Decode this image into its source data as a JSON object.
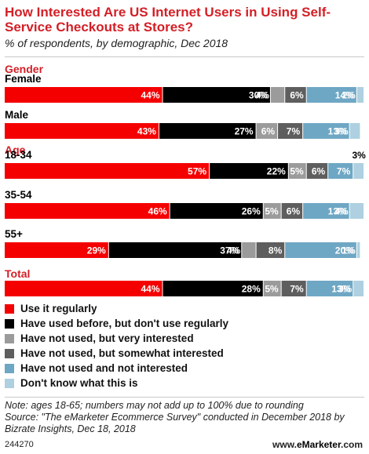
{
  "title": "How Interested Are US Internet Users in Using Self-Service Checkouts at Stores?",
  "subtitle": "% of respondents, by demographic, Dec 2018",
  "colors": {
    "accent": "#d31f26",
    "use_regularly": "#f50000",
    "used_before": "#000000",
    "very_interested": "#9b9b9b",
    "somewhat_interested": "#5e5e5e",
    "not_interested": "#6ea7c4",
    "dont_know": "#aed0e0"
  },
  "chart_data": {
    "type": "bar",
    "orientation": "horizontal",
    "stacked": true,
    "xlim": [
      0,
      100
    ],
    "grid": false,
    "legend_position": "bottom",
    "series_names": [
      "Use it regularly",
      "Have used before, but don't use regularly",
      "Have not used, but very interested",
      "Have not used, but somewhat interested",
      "Have not used and not interested",
      "Don't know what this is"
    ],
    "groups": [
      {
        "heading": "Gender",
        "bars": [
          {
            "label": "Female",
            "values": [
              44,
              30,
              4,
              6,
              14,
              2
            ],
            "data_labels": [
              "44%",
              "30%",
              "4%",
              "6%",
              "14%",
              "2%"
            ]
          },
          {
            "label": "Male",
            "values": [
              43,
              27,
              6,
              7,
              13,
              3
            ],
            "data_labels": [
              "43%",
              "27%",
              "6%",
              "7%",
              "13%",
              "3%"
            ]
          }
        ]
      },
      {
        "heading": "Age",
        "bars": [
          {
            "label": "18-34",
            "values": [
              57,
              22,
              5,
              6,
              7,
              3
            ],
            "data_labels": [
              "57%",
              "22%",
              "5%",
              "6%",
              "7%",
              "3%"
            ]
          },
          {
            "label": "35-54",
            "values": [
              46,
              26,
              5,
              6,
              13,
              4
            ],
            "data_labels": [
              "46%",
              "26%",
              "5%",
              "6%",
              "13%",
              "4%"
            ]
          },
          {
            "label": "55+",
            "values": [
              29,
              37,
              4,
              8,
              20,
              1
            ],
            "data_labels": [
              "29%",
              "37%",
              "4%",
              "8%",
              "20%",
              "1%"
            ]
          }
        ]
      },
      {
        "heading": "Total",
        "bars": [
          {
            "label": "",
            "values": [
              44,
              28,
              5,
              7,
              13,
              3
            ],
            "data_labels": [
              "44%",
              "28%",
              "5%",
              "7%",
              "13%",
              "3%"
            ]
          }
        ]
      }
    ]
  },
  "note": "Note: ages 18-65; numbers may not add up to 100% due to rounding",
  "source": "Source: \"The eMarketer Ecommerce Survey\" conducted in December 2018 by Bizrate Insights, Dec 18, 2018",
  "chart_id": "244270",
  "brand_prefix": "www.",
  "brand_name": "eMarketer",
  "brand_suffix": ".com"
}
